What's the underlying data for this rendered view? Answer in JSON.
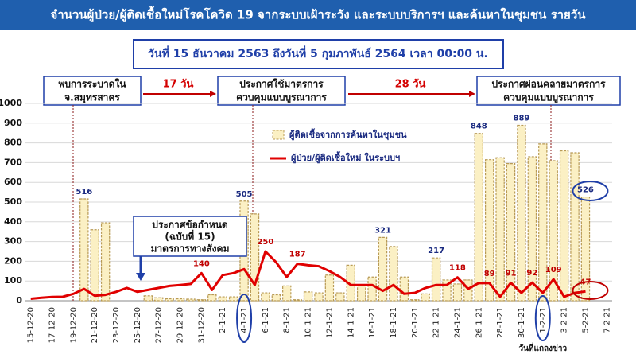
{
  "header": {
    "title": "จำนวนผู้ป่วย/ผู้ติดเชื้อใหม่โรคโควิด 19 จากระบบเฝ้าระวัง และระบบบริการฯ และค้นหาในชุมชน รายวัน"
  },
  "chart_data": {
    "type": "combo",
    "subtitle": "วันที่ 15 ธันวาคม 2563 ถึงวันที่ 5 กุมภาพันธ์ 2564 เวลา 00:00 น.",
    "annotations": [
      [
        "พบการระบาดใน",
        "จ.สมุทรสาคร"
      ],
      [
        "ประกาศใช้มาตรการ",
        "ควบคุมแบบบูรณาการ"
      ],
      [
        "ประกาศผ่อนคลายมาตรการ",
        "ควบคุมแบบบูรณาการ"
      ],
      [
        "ประกาศข้อกำหนด",
        "(ฉบับที่ 15)",
        "มาตรการทางสังคม"
      ]
    ],
    "intervals": [
      "17 วัน",
      "28 วัน"
    ],
    "note": "วันที่แถลงข่าว",
    "categories": [
      "15-12-20",
      null,
      "17-12-20",
      null,
      "19-12-20",
      null,
      "21-12-20",
      null,
      "23-12-20",
      null,
      "25-12-20",
      null,
      "27-12-20",
      null,
      "29-12-20",
      null,
      "31-12-20",
      null,
      "2-1-21",
      null,
      "4-1-21",
      null,
      "6-1-21",
      null,
      "8-1-21",
      null,
      "10-1-21",
      null,
      "12-1-21",
      null,
      "14-1-21",
      null,
      "16-1-21",
      null,
      "18-1-21",
      null,
      "20-1-21",
      null,
      "22-1-21",
      null,
      "24-1-21",
      null,
      "26-1-21",
      null,
      "28-1-21",
      null,
      "30-1-21",
      null,
      "1-2-21",
      null,
      "3-2-21",
      null,
      "5-2-21",
      null,
      "7-2-21"
    ],
    "series": [
      {
        "name": "ผู้ติดเชื้อจากการค้นหาในชุมชน",
        "type": "bar",
        "color": "#fbf0c4",
        "values": [
          0,
          0,
          0,
          0,
          0,
          516,
          360,
          395,
          0,
          0,
          0,
          25,
          15,
          10,
          10,
          8,
          5,
          30,
          20,
          20,
          505,
          440,
          40,
          30,
          75,
          5,
          45,
          40,
          130,
          40,
          180,
          80,
          120,
          321,
          275,
          120,
          5,
          35,
          217,
          105,
          85,
          105,
          848,
          715,
          725,
          695,
          889,
          730,
          795,
          710,
          760,
          750,
          526,
          null,
          null
        ],
        "value_labels": [
          null,
          null,
          null,
          null,
          null,
          "516",
          null,
          null,
          null,
          null,
          null,
          null,
          null,
          null,
          null,
          null,
          null,
          null,
          null,
          null,
          "505",
          null,
          null,
          null,
          null,
          null,
          null,
          null,
          null,
          null,
          null,
          null,
          null,
          "321",
          null,
          null,
          null,
          null,
          "217",
          null,
          null,
          null,
          "848",
          null,
          null,
          null,
          "889",
          null,
          null,
          null,
          null,
          null,
          "526",
          null,
          null
        ]
      },
      {
        "name": "ผู้ป่วย/ผู้ติดเชื้อใหม่ ในระบบฯ",
        "type": "line",
        "color": "#e00000",
        "values": [
          10,
          15,
          19,
          20,
          35,
          60,
          25,
          30,
          45,
          65,
          45,
          55,
          65,
          75,
          80,
          85,
          140,
          55,
          130,
          140,
          160,
          80,
          250,
          195,
          120,
          187,
          180,
          175,
          150,
          120,
          80,
          80,
          80,
          50,
          80,
          35,
          40,
          65,
          80,
          80,
          118,
          60,
          90,
          89,
          20,
          91,
          40,
          92,
          40,
          109,
          20,
          40,
          47,
          null,
          null
        ],
        "value_labels": [
          null,
          null,
          null,
          null,
          null,
          null,
          null,
          null,
          null,
          null,
          null,
          null,
          null,
          null,
          null,
          null,
          "140",
          null,
          null,
          null,
          null,
          null,
          "250",
          null,
          null,
          "187",
          null,
          null,
          null,
          null,
          null,
          null,
          null,
          null,
          null,
          null,
          null,
          null,
          null,
          null,
          "118",
          null,
          null,
          "89",
          null,
          "91",
          null,
          "92",
          null,
          "109",
          null,
          null,
          "47",
          null,
          null
        ]
      }
    ],
    "ylim": [
      0,
      1000
    ],
    "yticks": [
      0,
      100,
      200,
      300,
      400,
      500,
      600,
      700,
      800,
      900,
      1000
    ],
    "grid": true
  }
}
